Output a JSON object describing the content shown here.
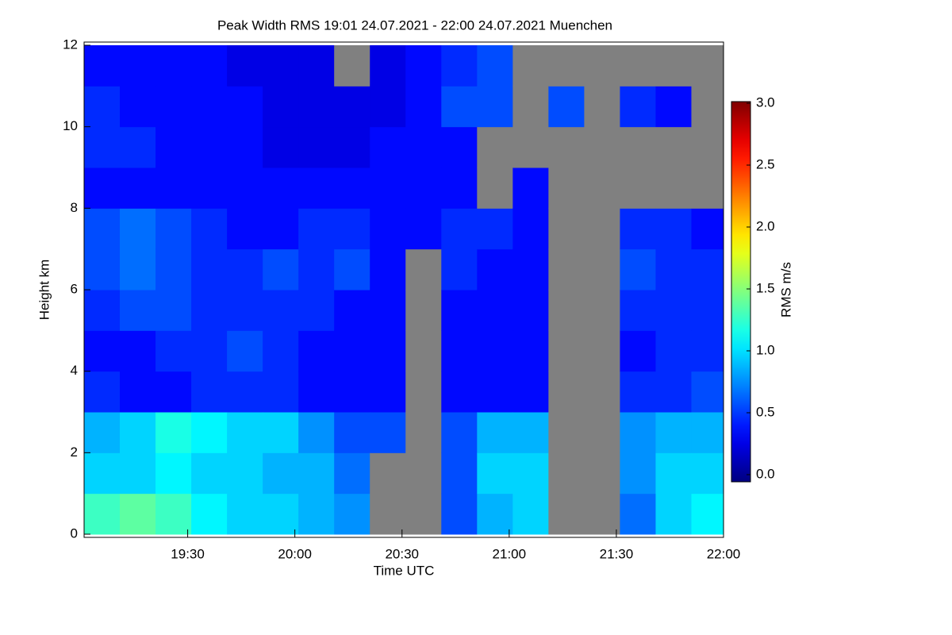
{
  "chart_data": {
    "type": "heatmap",
    "title": "Peak Width RMS   19:01 24.07.2021 - 22:00 24.07.2021 Muenchen",
    "x_label": "Time UTC",
    "y_label": "Height km",
    "colorbar_label": "RMS m/s",
    "colormap": "jet",
    "missing_color": "#808080",
    "x": [
      1141,
      1151,
      1161,
      1171,
      1181,
      1191,
      1201,
      1211,
      1221,
      1231,
      1241,
      1251,
      1261,
      1271,
      1281,
      1291,
      1301,
      1311,
      1320
    ],
    "y": [
      0,
      1,
      2,
      3,
      4,
      5,
      6,
      7,
      8,
      9,
      10,
      11,
      12
    ],
    "values": [
      [
        1.3,
        1.0,
        0.9,
        0.5,
        0.4,
        0.5,
        0.6,
        0.6,
        0.4,
        0.5,
        0.5,
        0.4
      ],
      [
        1.4,
        1.0,
        1.0,
        0.4,
        0.4,
        0.6,
        0.7,
        0.7,
        0.4,
        0.5,
        0.4,
        0.4
      ],
      [
        1.3,
        1.1,
        1.2,
        0.4,
        0.5,
        0.6,
        0.6,
        0.6,
        0.4,
        0.4,
        0.4,
        0.4
      ],
      [
        1.1,
        1.0,
        1.1,
        0.5,
        0.5,
        0.5,
        0.5,
        0.5,
        0.4,
        0.4,
        0.4,
        0.4
      ],
      [
        1.0,
        1.0,
        1.0,
        0.5,
        0.6,
        0.5,
        0.5,
        0.4,
        0.4,
        0.4,
        0.4,
        0.3
      ],
      [
        1.0,
        0.9,
        1.0,
        0.5,
        0.5,
        0.5,
        0.6,
        0.4,
        0.4,
        0.3,
        0.3,
        0.3
      ],
      [
        0.9,
        0.9,
        0.8,
        0.4,
        0.4,
        0.5,
        0.5,
        0.5,
        0.4,
        0.3,
        0.3,
        0.3
      ],
      [
        0.8,
        0.7,
        0.6,
        0.4,
        0.4,
        0.4,
        0.6,
        0.5,
        0.4,
        0.3,
        0.3,
        null
      ],
      [
        null,
        null,
        0.6,
        0.4,
        0.4,
        0.4,
        0.4,
        0.4,
        0.4,
        0.4,
        0.3,
        0.3
      ],
      [
        null,
        null,
        null,
        null,
        null,
        null,
        null,
        0.4,
        0.4,
        0.4,
        0.4,
        0.4
      ],
      [
        0.6,
        0.6,
        0.6,
        0.4,
        0.4,
        0.4,
        0.5,
        0.5,
        0.4,
        0.4,
        0.6,
        0.5
      ],
      [
        0.9,
        1.0,
        0.9,
        0.4,
        0.4,
        0.4,
        0.4,
        0.5,
        null,
        null,
        0.6,
        0.6
      ],
      [
        1.0,
        1.0,
        0.9,
        0.4,
        0.4,
        0.4,
        0.4,
        0.4,
        0.4,
        null,
        null,
        null
      ],
      [
        null,
        null,
        null,
        null,
        null,
        null,
        null,
        null,
        null,
        null,
        0.6,
        null
      ],
      [
        null,
        null,
        null,
        null,
        null,
        null,
        null,
        null,
        null,
        null,
        null,
        null
      ],
      [
        0.7,
        0.8,
        0.8,
        0.5,
        0.4,
        0.5,
        0.6,
        0.5,
        null,
        null,
        0.5,
        null
      ],
      [
        1.0,
        1.0,
        0.9,
        0.5,
        0.5,
        0.5,
        0.5,
        0.5,
        null,
        null,
        0.4,
        null
      ],
      [
        1.1,
        1.0,
        0.9,
        0.6,
        0.5,
        0.5,
        0.5,
        0.4,
        null,
        null,
        null,
        null
      ]
    ],
    "xlim": [
      1141,
      1320
    ],
    "xticks": [
      {
        "value": 1170,
        "label": "19:30"
      },
      {
        "value": 1200,
        "label": "20:00"
      },
      {
        "value": 1230,
        "label": "20:30"
      },
      {
        "value": 1260,
        "label": "21:00"
      },
      {
        "value": 1290,
        "label": "21:30"
      },
      {
        "value": 1320,
        "label": "22:00"
      }
    ],
    "ylim": [
      0,
      12
    ],
    "yticks": [
      0,
      2,
      4,
      6,
      8,
      10,
      12
    ],
    "clim": [
      0,
      3
    ],
    "cticks": [
      {
        "value": 0,
        "label": "0.0"
      },
      {
        "value": 0.5,
        "label": "0.5"
      },
      {
        "value": 1,
        "label": "1.0"
      },
      {
        "value": 1.5,
        "label": "1.5"
      },
      {
        "value": 2,
        "label": "2.0"
      },
      {
        "value": 2.5,
        "label": "2.5"
      },
      {
        "value": 3,
        "label": "3.0"
      }
    ]
  }
}
